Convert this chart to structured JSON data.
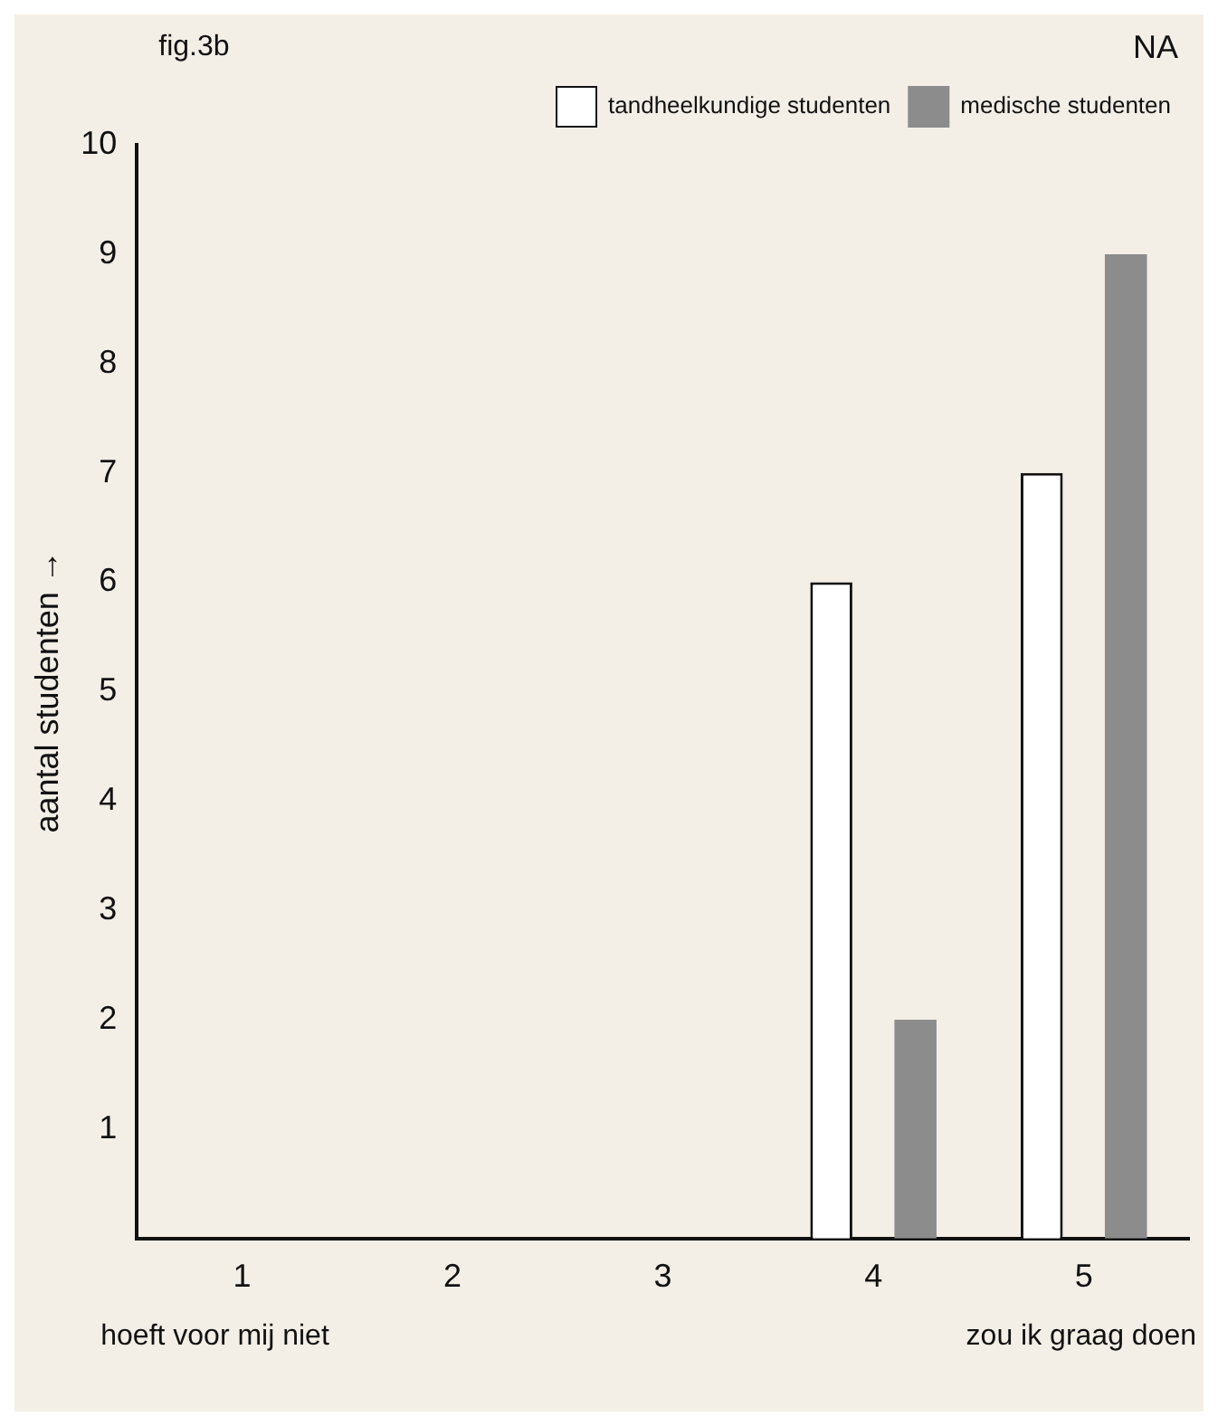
{
  "chart_data": {
    "type": "bar",
    "title": "fig.3b",
    "subtitle": "NA",
    "ylabel": "aantal studenten →",
    "categories": [
      "1",
      "2",
      "3",
      "4",
      "5"
    ],
    "series": [
      {
        "name": "tandheelkundige studenten",
        "color": "#ffffff",
        "values": [
          0,
          0,
          0,
          6,
          7
        ]
      },
      {
        "name": "medische studenten",
        "color": "#8c8c8c",
        "values": [
          0,
          0,
          0,
          2,
          9
        ]
      }
    ],
    "ylim": [
      0,
      10
    ],
    "yticks": [
      1,
      2,
      3,
      4,
      5,
      6,
      7,
      8,
      9,
      10
    ],
    "grid": false,
    "legend": "top right",
    "annotations": [
      "hoeft voor mij niet",
      "zou ik graag doen"
    ]
  }
}
